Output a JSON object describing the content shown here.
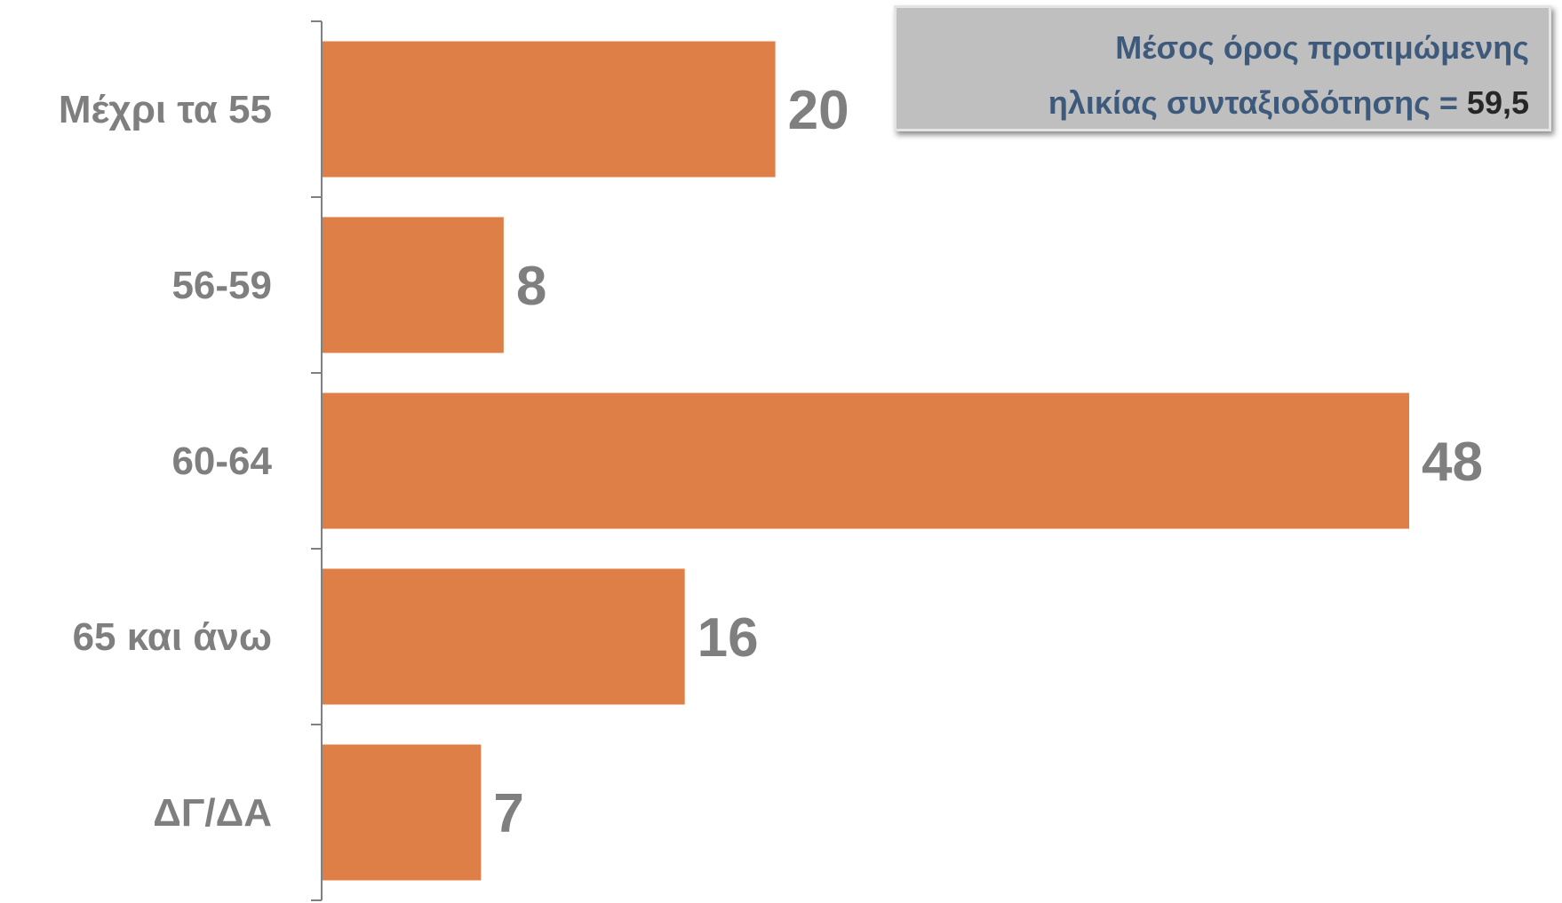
{
  "chart_data": {
    "type": "bar",
    "orientation": "horizontal",
    "categories": [
      "Μέχρι τα 55",
      "56-59",
      "60-64",
      "65 και άνω",
      "ΔΓ/ΔΑ"
    ],
    "values": [
      20,
      8,
      48,
      16,
      7
    ],
    "data_labels": [
      "20",
      "8",
      "48",
      "16",
      "7"
    ],
    "xlim": [
      0,
      50
    ],
    "bar_color": "#dd7f46",
    "grid": false,
    "legend": "none"
  },
  "annotation": {
    "line1": "Μέσος όρος προτιμώμενης",
    "line2_prefix": "ηλικίας συνταξιοδότησης = ",
    "line2_value": "59,5"
  },
  "colors": {
    "label_text": "#7f7f7f",
    "annotation_text": "#3d5a7c",
    "annotation_bg": "#bfbfbf"
  }
}
